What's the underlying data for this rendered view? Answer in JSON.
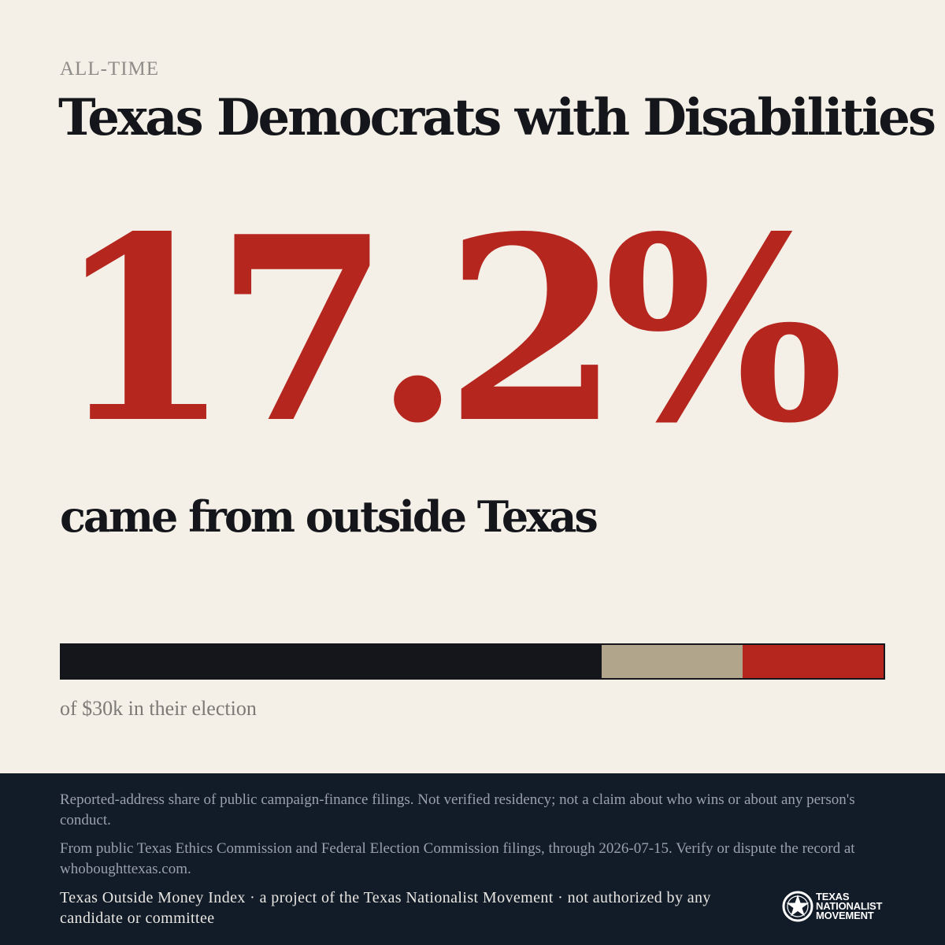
{
  "header": {
    "period": "ALL-TIME",
    "title": "Texas Democrats with Disabilities"
  },
  "stat": {
    "value": "17.2%",
    "caption": "came from outside Texas"
  },
  "breakdown": {
    "segments": [
      {
        "name": "inside-texas",
        "share": 0.658,
        "color": "#14161b"
      },
      {
        "name": "unknown",
        "share": 0.171,
        "color": "#b1a58b"
      },
      {
        "name": "outside-texas",
        "share": 0.172,
        "color": "#b5261f"
      }
    ],
    "label": "of $30k in their election"
  },
  "footer": {
    "disclaimer": "Reported-address share of public campaign-finance filings. Not verified residency; not a claim about who wins or about any person's conduct.",
    "source": "From public Texas Ethics Commission and Federal Election Commission filings, through 2026-07-15. Verify or dispute the record at whoboughttexas.com.",
    "credit": "Texas Outside Money Index · a project of the Texas Nationalist Movement · not authorized by any candidate or committee",
    "logo": {
      "line1": "TEXAS",
      "line2": "NATIONALIST",
      "line3": "MOVEMENT",
      "icon": "tnm-star-emblem-icon"
    }
  }
}
